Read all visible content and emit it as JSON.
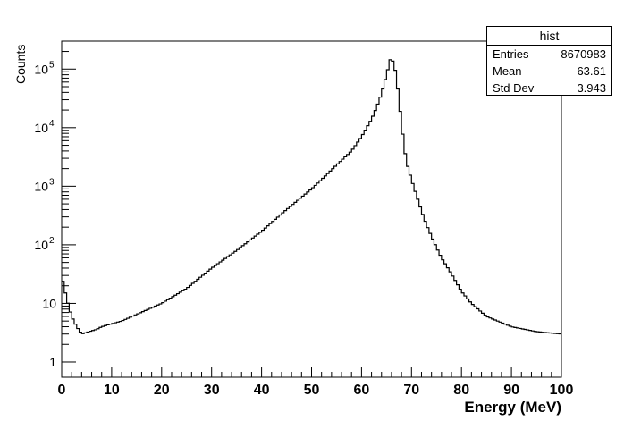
{
  "chart_data": {
    "type": "histogram",
    "title": "",
    "xlabel": "Energy (MeV)",
    "ylabel": "Counts",
    "xlim": [
      0,
      100
    ],
    "ylim": [
      0.55,
      300000
    ],
    "y_scale": "log",
    "x_ticks": [
      0,
      10,
      20,
      30,
      40,
      50,
      60,
      70,
      80,
      90,
      100
    ],
    "y_ticks": [
      {
        "value": 1,
        "label": "1"
      },
      {
        "value": 10,
        "label": "10"
      },
      {
        "value": 100,
        "label": "10",
        "exp": "2"
      },
      {
        "value": 1000,
        "label": "10",
        "exp": "3"
      },
      {
        "value": 10000,
        "label": "10",
        "exp": "4"
      },
      {
        "value": 100000,
        "label": "10",
        "exp": "5"
      }
    ],
    "grid": false,
    "series": [
      {
        "x": [
          0,
          1,
          2,
          3,
          4,
          5,
          6,
          7,
          8,
          10,
          12,
          15,
          20,
          25,
          30,
          35,
          40,
          42,
          45,
          48,
          50,
          52,
          55,
          58,
          60,
          62,
          63,
          64,
          65,
          65.8,
          66.5,
          67,
          67.5,
          68,
          68.5,
          69,
          70,
          71,
          72,
          73,
          74,
          75,
          76,
          78,
          80,
          82,
          85,
          90,
          95,
          100
        ],
        "values": [
          30,
          12,
          6,
          4,
          3,
          3.2,
          3.4,
          3.6,
          4,
          4.5,
          5,
          6.5,
          10,
          18,
          40,
          80,
          170,
          240,
          400,
          650,
          900,
          1300,
          2300,
          4000,
          7000,
          14000,
          22000,
          38000,
          80000,
          150000,
          130000,
          70000,
          30000,
          12000,
          5000,
          2600,
          1300,
          700,
          380,
          220,
          140,
          90,
          60,
          32,
          16,
          10,
          6,
          4,
          3.3,
          3
        ]
      }
    ],
    "stats": {
      "name": "hist",
      "entries_label": "Entries",
      "entries": "8670983",
      "mean_label": "Mean",
      "mean": "63.61",
      "stddev_label": "Std Dev",
      "stddev": "3.943"
    }
  }
}
